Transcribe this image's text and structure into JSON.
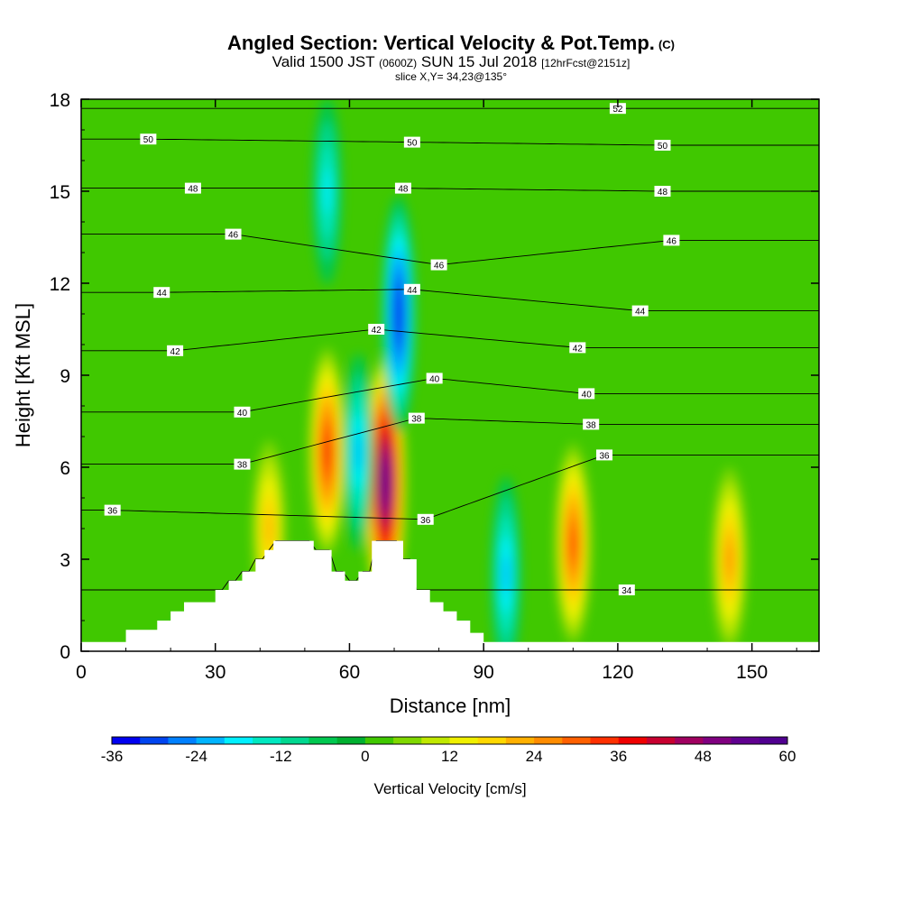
{
  "title": {
    "main": "Angled Section: Vertical Velocity & Pot.Temp.",
    "copyright_tag": "(C)",
    "valid_prefix": "Valid 1500 JST",
    "valid_utc": "(0600Z)",
    "valid_date": "SUN 15 Jul 2018",
    "forecast": "[12hrFcst@2151z]",
    "slice": "slice X,Y= 34,23@135°"
  },
  "chart_data": {
    "type": "heatmap",
    "xlabel": "Distance [nm]",
    "ylabel": "Height [Kft MSL]",
    "xlim": [
      0,
      165
    ],
    "ylim": [
      0,
      18
    ],
    "x_ticks": [
      "0",
      "30",
      "60",
      "90",
      "120",
      "150"
    ],
    "y_ticks": [
      "0",
      "3",
      "6",
      "9",
      "12",
      "15",
      "18"
    ],
    "colorbar": {
      "label": "Vertical Velocity [cm/s]",
      "min": -36,
      "max": 60,
      "step": 4,
      "tick_labels": [
        "-36",
        "-24",
        "-12",
        "0",
        "12",
        "24",
        "36",
        "48",
        "60"
      ],
      "colors": [
        "#0000f0",
        "#0044f0",
        "#0080ff",
        "#00b4ff",
        "#00f0ff",
        "#00e8c0",
        "#00d890",
        "#00c850",
        "#00b030",
        "#40c800",
        "#80d800",
        "#c0e800",
        "#f0f000",
        "#ffd800",
        "#ffb000",
        "#ff8c00",
        "#ff6000",
        "#ff3000",
        "#f00000",
        "#c80030",
        "#a00060",
        "#800080",
        "#600090",
        "#500090"
      ]
    },
    "updraft_cores": [
      {
        "x": 68,
        "z": 5.5,
        "max": 60
      },
      {
        "x": 55,
        "z": 6.5,
        "max": 36
      },
      {
        "x": 110,
        "z": 3.5,
        "max": 32
      },
      {
        "x": 145,
        "z": 3.0,
        "max": 24
      },
      {
        "x": 42,
        "z": 4.0,
        "max": 20
      }
    ],
    "downdraft_cores": [
      {
        "x": 71,
        "z": 11,
        "min": -36
      },
      {
        "x": 62,
        "z": 6.5,
        "min": -20
      },
      {
        "x": 95,
        "z": 2.5,
        "min": -20
      },
      {
        "x": 55,
        "z": 15,
        "min": -16
      }
    ],
    "terrain": [
      [
        0,
        0.3
      ],
      [
        10,
        0.3
      ],
      [
        10,
        0.7
      ],
      [
        17,
        0.7
      ],
      [
        17,
        1.0
      ],
      [
        20,
        1.0
      ],
      [
        20,
        1.3
      ],
      [
        23,
        1.3
      ],
      [
        23,
        1.6
      ],
      [
        30,
        1.6
      ],
      [
        30,
        2.0
      ],
      [
        33,
        2.0
      ],
      [
        33,
        2.3
      ],
      [
        36,
        2.3
      ],
      [
        36,
        2.6
      ],
      [
        39,
        2.6
      ],
      [
        39,
        3.0
      ],
      [
        41,
        3.0
      ],
      [
        41,
        3.3
      ],
      [
        43,
        3.3
      ],
      [
        43,
        3.6
      ],
      [
        52,
        3.6
      ],
      [
        52,
        3.3
      ],
      [
        56,
        3.3
      ],
      [
        56,
        2.6
      ],
      [
        59,
        2.6
      ],
      [
        59,
        2.3
      ],
      [
        62,
        2.3
      ],
      [
        62,
        2.6
      ],
      [
        65,
        2.6
      ],
      [
        65,
        3.6
      ],
      [
        72,
        3.6
      ],
      [
        72,
        3.0
      ],
      [
        75,
        3.0
      ],
      [
        75,
        2.0
      ],
      [
        78,
        2.0
      ],
      [
        78,
        1.6
      ],
      [
        81,
        1.6
      ],
      [
        81,
        1.3
      ],
      [
        84,
        1.3
      ],
      [
        84,
        1.0
      ],
      [
        87,
        1.0
      ],
      [
        87,
        0.6
      ],
      [
        90,
        0.6
      ],
      [
        90,
        0.3
      ],
      [
        165,
        0.3
      ]
    ],
    "isentropes": [
      {
        "value": "34",
        "labels": [
          [
            122,
            2.0
          ]
        ]
      },
      {
        "value": "36",
        "labels": [
          [
            7,
            4.6
          ],
          [
            77,
            4.3
          ],
          [
            117,
            6.4
          ]
        ]
      },
      {
        "value": "38",
        "labels": [
          [
            36,
            6.1
          ],
          [
            75,
            7.6
          ],
          [
            114,
            7.4
          ]
        ]
      },
      {
        "value": "40",
        "labels": [
          [
            36,
            7.8
          ],
          [
            79,
            8.9
          ],
          [
            113,
            8.4
          ]
        ]
      },
      {
        "value": "42",
        "labels": [
          [
            21,
            9.8
          ],
          [
            66,
            10.5
          ],
          [
            111,
            9.9
          ]
        ]
      },
      {
        "value": "44",
        "labels": [
          [
            18,
            11.7
          ],
          [
            74,
            11.8
          ],
          [
            125,
            11.1
          ]
        ]
      },
      {
        "value": "46",
        "labels": [
          [
            34,
            13.6
          ],
          [
            80,
            12.6
          ],
          [
            132,
            13.4
          ]
        ]
      },
      {
        "value": "48",
        "labels": [
          [
            25,
            15.1
          ],
          [
            72,
            15.1
          ],
          [
            130,
            15.0
          ]
        ]
      },
      {
        "value": "50",
        "labels": [
          [
            15,
            16.7
          ],
          [
            74,
            16.6
          ],
          [
            130,
            16.5
          ]
        ]
      },
      {
        "value": "52",
        "labels": [
          [
            120,
            17.7
          ]
        ]
      }
    ]
  }
}
